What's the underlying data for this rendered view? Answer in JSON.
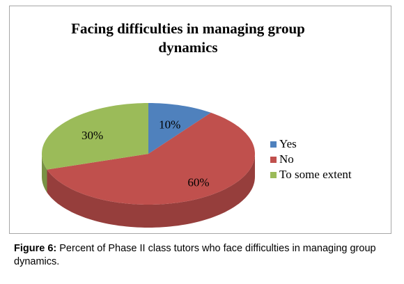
{
  "chart_data": {
    "type": "pie3d",
    "title": "Facing difficulties in managing group dynamics",
    "categories": [
      "Yes",
      "No",
      "To some extent"
    ],
    "values": [
      10,
      60,
      30
    ],
    "value_labels": [
      "10%",
      "60%",
      "30%"
    ],
    "colors": [
      "#4f81bd",
      "#c0504d",
      "#9bbb59"
    ],
    "legend": "right"
  },
  "figure": {
    "label": "Figure 6:",
    "text": "Percent of Phase II class tutors who face difficulties  in managing group dynamics."
  }
}
